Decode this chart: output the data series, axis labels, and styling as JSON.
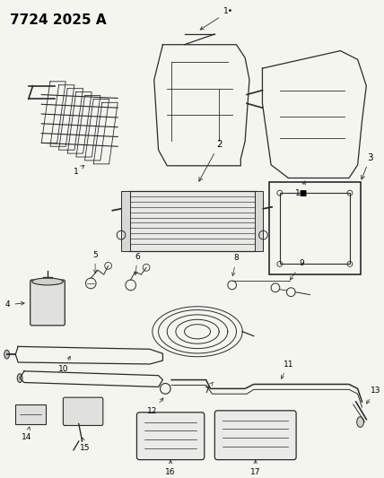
{
  "title": "7724 2025 A",
  "bg_color": "#f5f5f0",
  "title_fontsize": 11,
  "figsize": [
    4.28,
    5.33
  ],
  "dpi": 100,
  "line_color": "#2a2a2a",
  "label_fontsize": 6.5
}
